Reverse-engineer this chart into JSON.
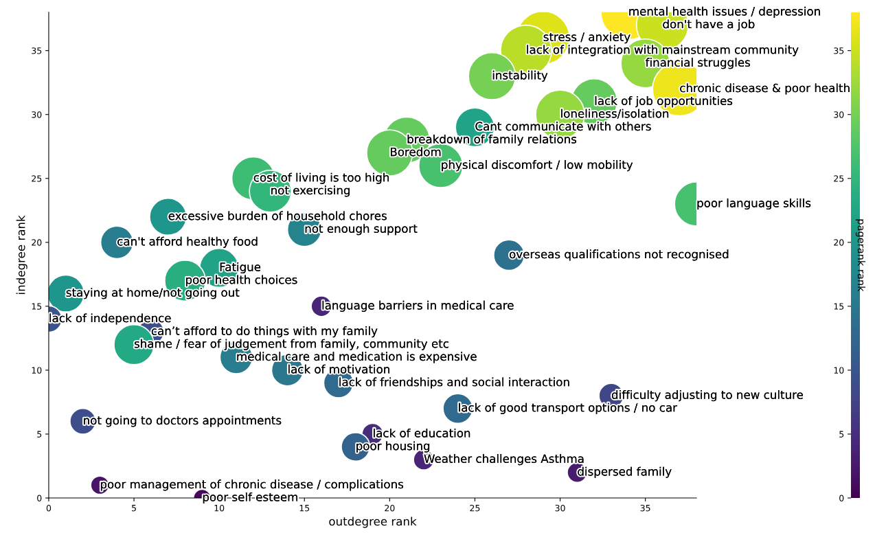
{
  "chart_data": {
    "type": "bubble",
    "xlabel": "outdegree rank",
    "ylabel": "indegree rank",
    "clabel": "pagerank rank",
    "xlim": [
      0,
      38
    ],
    "ylim": [
      0,
      38
    ],
    "xticks": [
      0,
      5,
      10,
      15,
      20,
      25,
      30,
      35
    ],
    "yticks": [
      0,
      5,
      10,
      15,
      20,
      25,
      30,
      35
    ],
    "clim": [
      0,
      38
    ],
    "cticks": [
      0,
      5,
      10,
      15,
      20,
      25,
      30,
      35
    ],
    "grid": false,
    "legend": false,
    "x": [
      34,
      36,
      29,
      28,
      35,
      37,
      32,
      30,
      26,
      25,
      21,
      20,
      23,
      12,
      13,
      38,
      7,
      15,
      4,
      27,
      10,
      8,
      1,
      16,
      0,
      6,
      5,
      11,
      14,
      17,
      33,
      24,
      2,
      19,
      18,
      22,
      31,
      3,
      9
    ],
    "values": [
      38,
      37,
      36,
      35,
      34,
      32,
      31,
      30,
      33,
      29,
      28,
      27,
      26,
      25,
      24,
      23,
      22,
      21,
      20,
      19,
      18,
      17,
      16,
      15,
      14,
      13,
      12,
      11,
      10,
      9,
      8,
      7,
      6,
      5,
      4,
      3,
      2,
      1,
      0
    ],
    "cvalues": [
      38,
      35,
      36,
      34,
      32,
      37,
      29,
      32,
      30,
      22,
      29,
      29,
      27,
      26,
      25,
      27,
      20,
      17,
      16,
      14,
      22,
      24,
      20,
      4,
      10,
      9,
      23,
      16,
      15,
      13,
      8,
      13,
      9,
      5,
      12,
      4,
      3,
      2,
      1
    ],
    "sizes": [
      1.0,
      0.89,
      0.93,
      0.86,
      0.79,
      0.96,
      0.7,
      0.79,
      0.73,
      0.5,
      0.7,
      0.7,
      0.64,
      0.61,
      0.58,
      0.64,
      0.45,
      0.38,
      0.35,
      0.31,
      0.5,
      0.55,
      0.45,
      0.14,
      0.23,
      0.22,
      0.53,
      0.35,
      0.33,
      0.29,
      0.2,
      0.29,
      0.22,
      0.15,
      0.27,
      0.14,
      0.13,
      0.11,
      0.1
    ],
    "annotations": [
      {
        "text": "mental health issues / depression",
        "x": 34,
        "y": 38
      },
      {
        "text": "don't have a job",
        "x": 36,
        "y": 37
      },
      {
        "text": "stress / anxiety",
        "x": 29,
        "y": 36
      },
      {
        "text": "lack of integration with mainstream community",
        "x": 28,
        "y": 35
      },
      {
        "text": "financial struggles",
        "x": 35,
        "y": 34
      },
      {
        "text": "chronic disease & poor health",
        "x": 37,
        "y": 32
      },
      {
        "text": "lack of job opportunities",
        "x": 32,
        "y": 31
      },
      {
        "text": "loneliness/isolation",
        "x": 30,
        "y": 30
      },
      {
        "text": "instability",
        "x": 26,
        "y": 33
      },
      {
        "text": "Cant communicate with others",
        "x": 25,
        "y": 29
      },
      {
        "text": "breakdown of family relations",
        "x": 21,
        "y": 28
      },
      {
        "text": "Boredom",
        "x": 20,
        "y": 27
      },
      {
        "text": "physical discomfort / low mobility",
        "x": 23,
        "y": 26
      },
      {
        "text": "cost of living is too high",
        "x": 12,
        "y": 25
      },
      {
        "text": "not exercising",
        "x": 13,
        "y": 24
      },
      {
        "text": "poor language skills",
        "x": 38,
        "y": 23
      },
      {
        "text": "excessive burden of household chores",
        "x": 7,
        "y": 22
      },
      {
        "text": "not enough support",
        "x": 15,
        "y": 21
      },
      {
        "text": "can't afford healthy food",
        "x": 4,
        "y": 20
      },
      {
        "text": "overseas qualifications not recognised",
        "x": 27,
        "y": 19
      },
      {
        "text": "Fatigue",
        "x": 10,
        "y": 18
      },
      {
        "text": "poor health choices",
        "x": 8,
        "y": 17
      },
      {
        "text": "staying at home/not going out",
        "x": 1,
        "y": 16
      },
      {
        "text": "language barriers in medical care",
        "x": 16,
        "y": 15
      },
      {
        "text": "lack of independence",
        "x": 0,
        "y": 14
      },
      {
        "text": "can’t afford to do things with my family",
        "x": 6,
        "y": 13
      },
      {
        "text": "shame / fear of judgement from family, community etc",
        "x": 5,
        "y": 12
      },
      {
        "text": "medical care and medication is expensive",
        "x": 11,
        "y": 11
      },
      {
        "text": "lack of motivation",
        "x": 14,
        "y": 10
      },
      {
        "text": "lack of friendships and social interaction",
        "x": 17,
        "y": 9
      },
      {
        "text": "difficulty adjusting to new culture",
        "x": 33,
        "y": 8
      },
      {
        "text": "lack of good transport options / no car",
        "x": 24,
        "y": 7
      },
      {
        "text": "not going to doctors appointments",
        "x": 2,
        "y": 6
      },
      {
        "text": "lack of education",
        "x": 19,
        "y": 5
      },
      {
        "text": "poor housing",
        "x": 18,
        "y": 4
      },
      {
        "text": "Weather challenges Asthma",
        "x": 22,
        "y": 3
      },
      {
        "text": "dispersed family",
        "x": 31,
        "y": 2
      },
      {
        "text": "poor management of chronic disease / complications",
        "x": 3,
        "y": 1
      },
      {
        "text": "poor self esteem",
        "x": 9,
        "y": 0
      }
    ]
  }
}
